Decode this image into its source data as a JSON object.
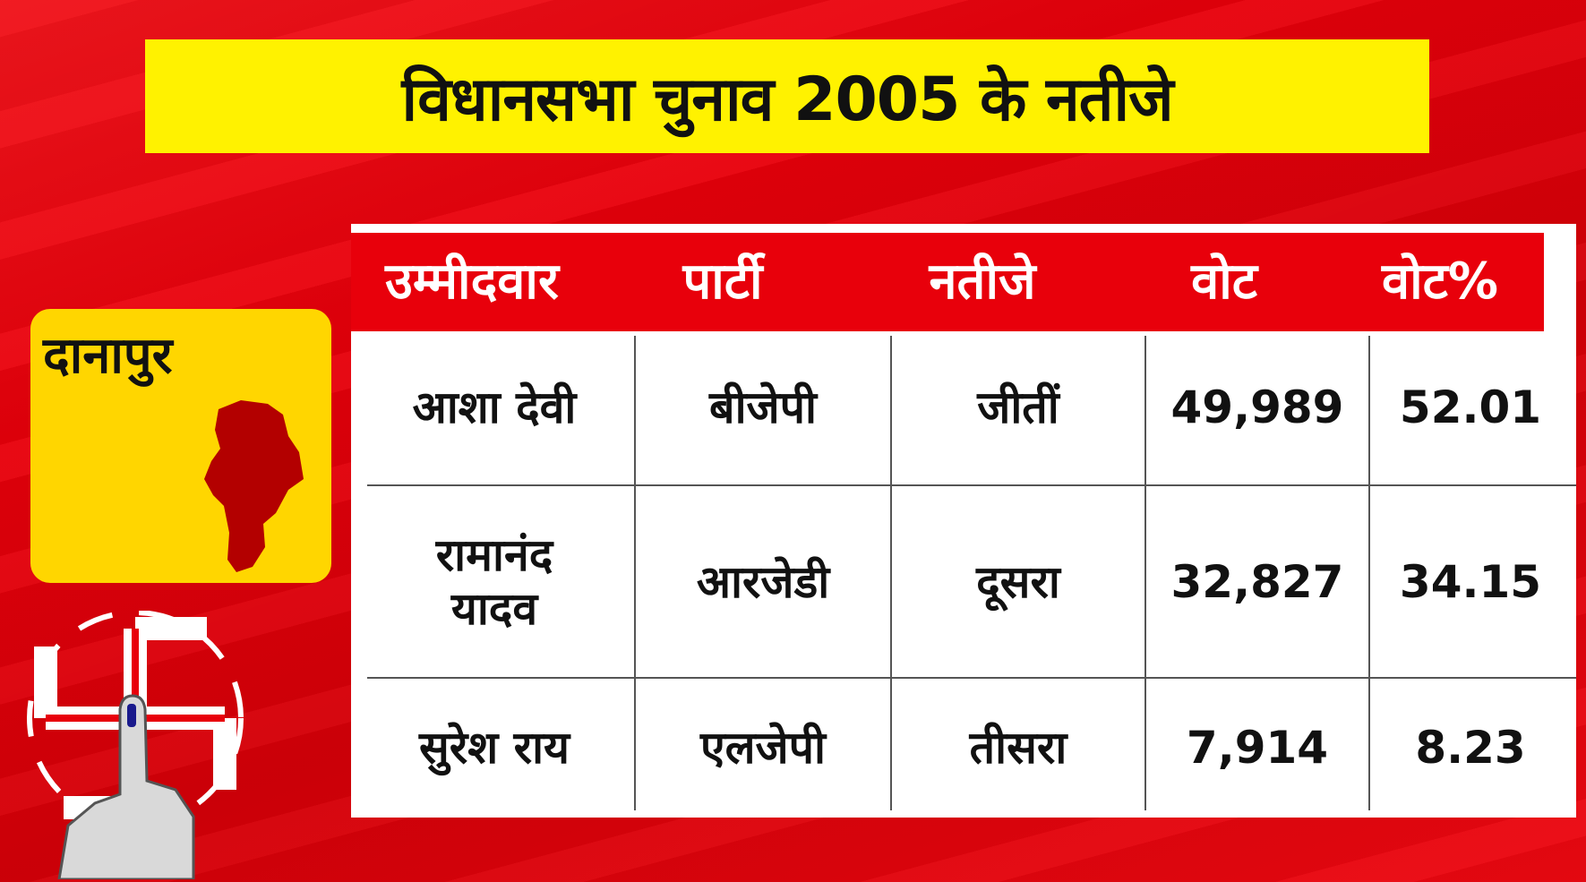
{
  "title": "विधानसभा चुनाव 2005 के नतीजे",
  "district": {
    "name": "दानापुर"
  },
  "table": {
    "headers": [
      "उम्मीदवार",
      "पार्टी",
      "नतीजे",
      "वोट",
      "वोट%"
    ],
    "rows": [
      {
        "candidate": "आशा देवी",
        "party": "बीजेपी",
        "result": "जीतीं",
        "votes": "49,989",
        "vote_pct": "52.01"
      },
      {
        "candidate": "रामानंद यादव",
        "party": "आरजेडी",
        "result": "दूसरा",
        "votes": "32,827",
        "vote_pct": "34.15"
      },
      {
        "candidate": "सुरेश राय",
        "party": "एलजेपी",
        "result": "तीसरा",
        "votes": "7,914",
        "vote_pct": "8.23"
      }
    ]
  },
  "colors": {
    "background": "#e8000b",
    "title_bar": "#fff200",
    "district_card": "#ffd600",
    "map_fill": "#b30000"
  },
  "icons": [
    "district-map-icon",
    "election-swastika-emblem-icon",
    "inked-finger-icon"
  ]
}
